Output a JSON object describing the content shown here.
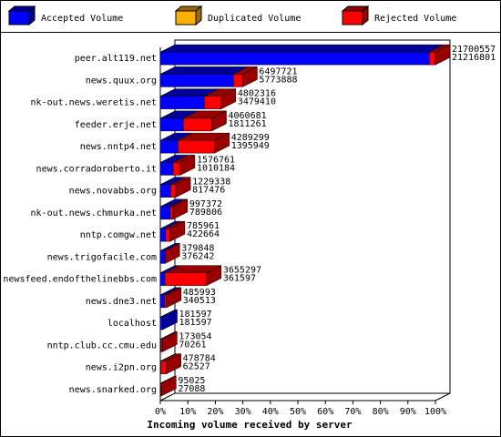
{
  "chart_data": {
    "type": "bar3d-stacked-horizontal",
    "title": "Incoming volume received by server",
    "categories": [
      "peer.alt119.net",
      "news.quux.org",
      "nk-out.news.weretis.net",
      "feeder.erje.net",
      "news.nntp4.net",
      "news.corradoroberto.it",
      "news.novabbs.org",
      "nk-out.news.chmurka.net",
      "nntp.comgw.net",
      "news.trigofacile.com",
      "newsfeed.endofthelinebbs.com",
      "news.dne3.net",
      "localhost",
      "nntp.club.cc.cmu.edu",
      "news.i2pn.org",
      "news.snarked.org"
    ],
    "totals": [
      21700557,
      6497721,
      4802316,
      4060681,
      4289299,
      1576761,
      1229338,
      997372,
      785961,
      379848,
      3655297,
      485993,
      181597,
      173054,
      478784,
      95025
    ],
    "series": [
      {
        "name": "Accepted Volume",
        "color": "#0000ff",
        "values": [
          21216801,
          5773888,
          3479410,
          1811261,
          1395949,
          1010184,
          817476,
          789806,
          422664,
          376242,
          361597,
          340513,
          181597,
          70261,
          62527,
          27088
        ]
      },
      {
        "name": "Duplicated Volume",
        "color": "#ffb000",
        "values": [
          0,
          0,
          0,
          0,
          0,
          0,
          0,
          0,
          0,
          0,
          0,
          0,
          0,
          0,
          0,
          0
        ]
      },
      {
        "name": "Rejected Volume",
        "color": "#ff0000",
        "values": [
          483756,
          723833,
          1322906,
          2249420,
          2893350,
          566577,
          411862,
          207566,
          363297,
          3606,
          3293700,
          145480,
          0,
          102793,
          416257,
          67937
        ]
      }
    ],
    "xlim": [
      0,
      100
    ],
    "xticks": [
      {
        "value": 0,
        "label": "0%"
      },
      {
        "value": 10,
        "label": "10%"
      },
      {
        "value": 20,
        "label": "20%"
      },
      {
        "value": 30,
        "label": "30%"
      },
      {
        "value": 40,
        "label": "40%"
      },
      {
        "value": 50,
        "label": "50%"
      },
      {
        "value": 60,
        "label": "60%"
      },
      {
        "value": 70,
        "label": "70%"
      },
      {
        "value": 80,
        "label": "80%"
      },
      {
        "value": 90,
        "label": "90%"
      },
      {
        "value": 100,
        "label": "100%"
      }
    ]
  }
}
